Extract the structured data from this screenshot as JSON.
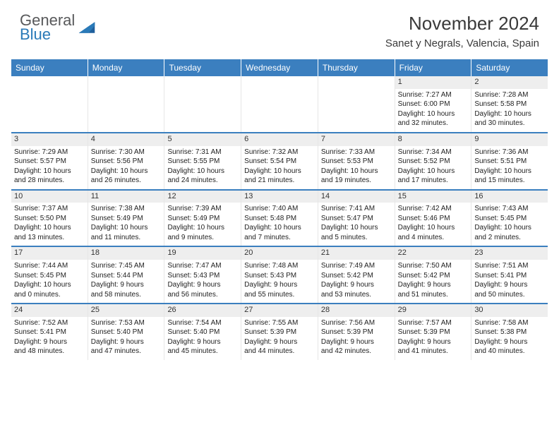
{
  "brand": {
    "general": "General",
    "blue": "Blue"
  },
  "title": "November 2024",
  "location": "Sanet y Negrals, Valencia, Spain",
  "colors": {
    "header_bg": "#3b7fbf",
    "header_fg": "#ffffff",
    "daynum_bg": "#eeeeee",
    "week_divider": "#3b7fbf",
    "brand_gray": "#58595b",
    "brand_blue": "#2a7ab8"
  },
  "day_headers": [
    "Sunday",
    "Monday",
    "Tuesday",
    "Wednesday",
    "Thursday",
    "Friday",
    "Saturday"
  ],
  "weeks": [
    [
      {
        "empty": true
      },
      {
        "empty": true
      },
      {
        "empty": true
      },
      {
        "empty": true
      },
      {
        "empty": true
      },
      {
        "n": "1",
        "sr": "Sunrise: 7:27 AM",
        "ss": "Sunset: 6:00 PM",
        "d1": "Daylight: 10 hours",
        "d2": "and 32 minutes."
      },
      {
        "n": "2",
        "sr": "Sunrise: 7:28 AM",
        "ss": "Sunset: 5:58 PM",
        "d1": "Daylight: 10 hours",
        "d2": "and 30 minutes."
      }
    ],
    [
      {
        "n": "3",
        "sr": "Sunrise: 7:29 AM",
        "ss": "Sunset: 5:57 PM",
        "d1": "Daylight: 10 hours",
        "d2": "and 28 minutes."
      },
      {
        "n": "4",
        "sr": "Sunrise: 7:30 AM",
        "ss": "Sunset: 5:56 PM",
        "d1": "Daylight: 10 hours",
        "d2": "and 26 minutes."
      },
      {
        "n": "5",
        "sr": "Sunrise: 7:31 AM",
        "ss": "Sunset: 5:55 PM",
        "d1": "Daylight: 10 hours",
        "d2": "and 24 minutes."
      },
      {
        "n": "6",
        "sr": "Sunrise: 7:32 AM",
        "ss": "Sunset: 5:54 PM",
        "d1": "Daylight: 10 hours",
        "d2": "and 21 minutes."
      },
      {
        "n": "7",
        "sr": "Sunrise: 7:33 AM",
        "ss": "Sunset: 5:53 PM",
        "d1": "Daylight: 10 hours",
        "d2": "and 19 minutes."
      },
      {
        "n": "8",
        "sr": "Sunrise: 7:34 AM",
        "ss": "Sunset: 5:52 PM",
        "d1": "Daylight: 10 hours",
        "d2": "and 17 minutes."
      },
      {
        "n": "9",
        "sr": "Sunrise: 7:36 AM",
        "ss": "Sunset: 5:51 PM",
        "d1": "Daylight: 10 hours",
        "d2": "and 15 minutes."
      }
    ],
    [
      {
        "n": "10",
        "sr": "Sunrise: 7:37 AM",
        "ss": "Sunset: 5:50 PM",
        "d1": "Daylight: 10 hours",
        "d2": "and 13 minutes."
      },
      {
        "n": "11",
        "sr": "Sunrise: 7:38 AM",
        "ss": "Sunset: 5:49 PM",
        "d1": "Daylight: 10 hours",
        "d2": "and 11 minutes."
      },
      {
        "n": "12",
        "sr": "Sunrise: 7:39 AM",
        "ss": "Sunset: 5:49 PM",
        "d1": "Daylight: 10 hours",
        "d2": "and 9 minutes."
      },
      {
        "n": "13",
        "sr": "Sunrise: 7:40 AM",
        "ss": "Sunset: 5:48 PM",
        "d1": "Daylight: 10 hours",
        "d2": "and 7 minutes."
      },
      {
        "n": "14",
        "sr": "Sunrise: 7:41 AM",
        "ss": "Sunset: 5:47 PM",
        "d1": "Daylight: 10 hours",
        "d2": "and 5 minutes."
      },
      {
        "n": "15",
        "sr": "Sunrise: 7:42 AM",
        "ss": "Sunset: 5:46 PM",
        "d1": "Daylight: 10 hours",
        "d2": "and 4 minutes."
      },
      {
        "n": "16",
        "sr": "Sunrise: 7:43 AM",
        "ss": "Sunset: 5:45 PM",
        "d1": "Daylight: 10 hours",
        "d2": "and 2 minutes."
      }
    ],
    [
      {
        "n": "17",
        "sr": "Sunrise: 7:44 AM",
        "ss": "Sunset: 5:45 PM",
        "d1": "Daylight: 10 hours",
        "d2": "and 0 minutes."
      },
      {
        "n": "18",
        "sr": "Sunrise: 7:45 AM",
        "ss": "Sunset: 5:44 PM",
        "d1": "Daylight: 9 hours",
        "d2": "and 58 minutes."
      },
      {
        "n": "19",
        "sr": "Sunrise: 7:47 AM",
        "ss": "Sunset: 5:43 PM",
        "d1": "Daylight: 9 hours",
        "d2": "and 56 minutes."
      },
      {
        "n": "20",
        "sr": "Sunrise: 7:48 AM",
        "ss": "Sunset: 5:43 PM",
        "d1": "Daylight: 9 hours",
        "d2": "and 55 minutes."
      },
      {
        "n": "21",
        "sr": "Sunrise: 7:49 AM",
        "ss": "Sunset: 5:42 PM",
        "d1": "Daylight: 9 hours",
        "d2": "and 53 minutes."
      },
      {
        "n": "22",
        "sr": "Sunrise: 7:50 AM",
        "ss": "Sunset: 5:42 PM",
        "d1": "Daylight: 9 hours",
        "d2": "and 51 minutes."
      },
      {
        "n": "23",
        "sr": "Sunrise: 7:51 AM",
        "ss": "Sunset: 5:41 PM",
        "d1": "Daylight: 9 hours",
        "d2": "and 50 minutes."
      }
    ],
    [
      {
        "n": "24",
        "sr": "Sunrise: 7:52 AM",
        "ss": "Sunset: 5:41 PM",
        "d1": "Daylight: 9 hours",
        "d2": "and 48 minutes."
      },
      {
        "n": "25",
        "sr": "Sunrise: 7:53 AM",
        "ss": "Sunset: 5:40 PM",
        "d1": "Daylight: 9 hours",
        "d2": "and 47 minutes."
      },
      {
        "n": "26",
        "sr": "Sunrise: 7:54 AM",
        "ss": "Sunset: 5:40 PM",
        "d1": "Daylight: 9 hours",
        "d2": "and 45 minutes."
      },
      {
        "n": "27",
        "sr": "Sunrise: 7:55 AM",
        "ss": "Sunset: 5:39 PM",
        "d1": "Daylight: 9 hours",
        "d2": "and 44 minutes."
      },
      {
        "n": "28",
        "sr": "Sunrise: 7:56 AM",
        "ss": "Sunset: 5:39 PM",
        "d1": "Daylight: 9 hours",
        "d2": "and 42 minutes."
      },
      {
        "n": "29",
        "sr": "Sunrise: 7:57 AM",
        "ss": "Sunset: 5:39 PM",
        "d1": "Daylight: 9 hours",
        "d2": "and 41 minutes."
      },
      {
        "n": "30",
        "sr": "Sunrise: 7:58 AM",
        "ss": "Sunset: 5:38 PM",
        "d1": "Daylight: 9 hours",
        "d2": "and 40 minutes."
      }
    ]
  ]
}
